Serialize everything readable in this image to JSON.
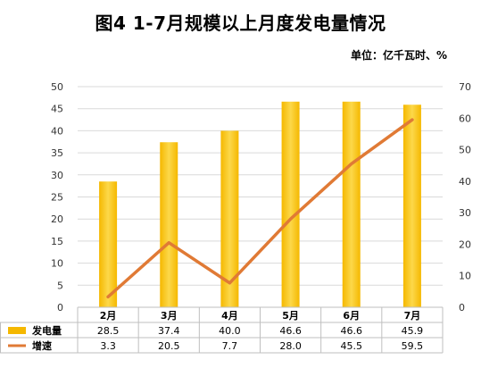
{
  "title": "图4  1-7月规模以上月度发电量情况",
  "unit": "单位：亿千瓦时、%",
  "colors": {
    "bar": "#F5B800",
    "bar_highlight": "#FCD84A",
    "line": "#E07A35",
    "grid": "#D9D9D9",
    "table_border": "#BFBFBF"
  },
  "chart_data": {
    "type": "bar",
    "categories": [
      "2月",
      "3月",
      "4月",
      "5月",
      "6月",
      "7月"
    ],
    "series": [
      {
        "name": "发电量",
        "type": "bar",
        "axis": "left",
        "values": [
          28.5,
          37.4,
          40.0,
          46.6,
          46.6,
          45.9
        ]
      },
      {
        "name": "增速",
        "type": "line",
        "axis": "right",
        "values": [
          3.3,
          20.5,
          7.7,
          28.0,
          45.5,
          59.5
        ]
      }
    ],
    "y_left": {
      "min": 0,
      "max": 50,
      "step": 5,
      "ticks": [
        "0",
        "5",
        "10",
        "15",
        "20",
        "25",
        "30",
        "35",
        "40",
        "45",
        "50"
      ]
    },
    "y_right": {
      "min": 0,
      "max": 70,
      "step": 10,
      "ticks": [
        "0",
        "10",
        "20",
        "30",
        "40",
        "50",
        "60",
        "70"
      ]
    },
    "table_values": [
      [
        "28.5",
        "37.4",
        "40.0",
        "46.6",
        "46.6",
        "45.9"
      ],
      [
        "3.3",
        "20.5",
        "7.7",
        "28.0",
        "45.5",
        "59.5"
      ]
    ],
    "grid": true,
    "legend": "data-table"
  }
}
